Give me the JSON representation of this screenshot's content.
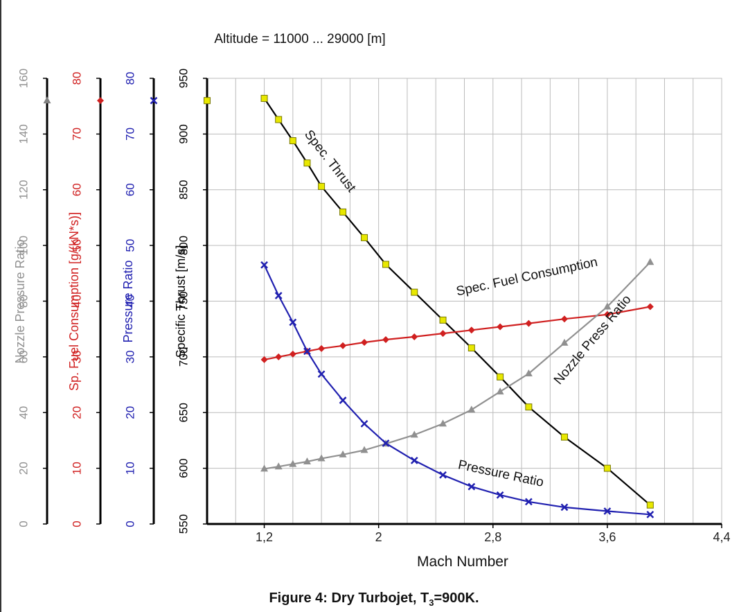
{
  "chart_data": {
    "type": "line",
    "subtitle": "Altitude = 11000 ... 29000 [m]",
    "xlabel": "Mach Number",
    "x_ticks": [
      "1,2",
      "2",
      "2,8",
      "3,6",
      "4,4"
    ],
    "xlim": [
      0.8,
      4.4
    ],
    "grid": true,
    "axes": [
      {
        "id": "thrust",
        "label": "Specific Thrust [m/s]",
        "ylim": [
          550,
          950
        ],
        "ticks": [
          "550",
          "600",
          "650",
          "700",
          "750",
          "800",
          "850",
          "900",
          "950"
        ],
        "color": "#000000"
      },
      {
        "id": "pr",
        "label": "Pressure Ratio",
        "ylim": [
          0,
          80
        ],
        "ticks": [
          "0",
          "10",
          "20",
          "30",
          "40",
          "50",
          "60",
          "70",
          "80"
        ],
        "color": "#2020b0"
      },
      {
        "id": "sfc",
        "label": "Sp. Fuel Consumption [g/(kN*s)]",
        "ylim": [
          0,
          80
        ],
        "ticks": [
          "0",
          "10",
          "20",
          "30",
          "40",
          "50",
          "60",
          "70",
          "80"
        ],
        "color": "#d02020"
      },
      {
        "id": "npr",
        "label": "Nozzle Pressure Ratio",
        "ylim": [
          0,
          160
        ],
        "ticks": [
          "0",
          "20",
          "40",
          "60",
          "80",
          "100",
          "120",
          "140",
          "160"
        ],
        "color": "#909090"
      }
    ],
    "x": [
      1.2,
      1.3,
      1.4,
      1.5,
      1.6,
      1.75,
      1.9,
      2.05,
      2.25,
      2.45,
      2.65,
      2.85,
      3.05,
      3.3,
      3.6,
      3.9
    ],
    "series": [
      {
        "name": "Spec. Thrust",
        "axis": "thrust",
        "color": "#000000",
        "marker_color": "#e8e800",
        "marker": "square",
        "values": [
          932,
          913,
          894,
          874,
          853,
          830,
          807,
          783,
          758,
          733,
          708,
          682,
          655,
          628,
          600,
          567
        ]
      },
      {
        "name": "Spec. Fuel Consumption",
        "axis": "sfc",
        "color": "#d02020",
        "marker": "diamond",
        "values": [
          29.5,
          30.0,
          30.5,
          31.0,
          31.5,
          32.0,
          32.6,
          33.1,
          33.6,
          34.2,
          34.8,
          35.4,
          36.0,
          36.8,
          37.6,
          39.0
        ]
      },
      {
        "name": "Nozzle Press Ratio",
        "axis": "npr",
        "color": "#909090",
        "marker": "triangle",
        "values": [
          19.8,
          20.6,
          21.5,
          22.4,
          23.5,
          24.9,
          26.5,
          28.8,
          32.0,
          36.0,
          41.0,
          47.5,
          54.0,
          65.0,
          78.0,
          94.0
        ]
      },
      {
        "name": "Pressure Ratio",
        "axis": "pr",
        "color": "#2020b0",
        "marker": "x",
        "values": [
          46.5,
          41.0,
          36.2,
          31.0,
          26.9,
          22.2,
          18.0,
          14.5,
          11.4,
          8.8,
          6.7,
          5.2,
          4.0,
          3.0,
          2.3,
          1.7
        ]
      }
    ],
    "axis_top_markers": [
      {
        "axis": "npr",
        "value": 152,
        "marker": "triangle",
        "color": "#808080"
      },
      {
        "axis": "sfc",
        "value": 76,
        "marker": "diamond",
        "color": "#d02020"
      },
      {
        "axis": "pr",
        "value": 76,
        "marker": "x",
        "color": "#2020b0"
      },
      {
        "axis": "thrust",
        "value": 930,
        "marker": "square",
        "color": "#e8e800"
      }
    ],
    "annotations": [
      "Spec. Thrust",
      "Spec. Fuel Consumption",
      "Nozzle Press Ratio",
      "Pressure Ratio"
    ]
  },
  "caption": "Figure 4: Dry Turbojet, T",
  "caption_sub": "3",
  "caption_tail": "=900K."
}
